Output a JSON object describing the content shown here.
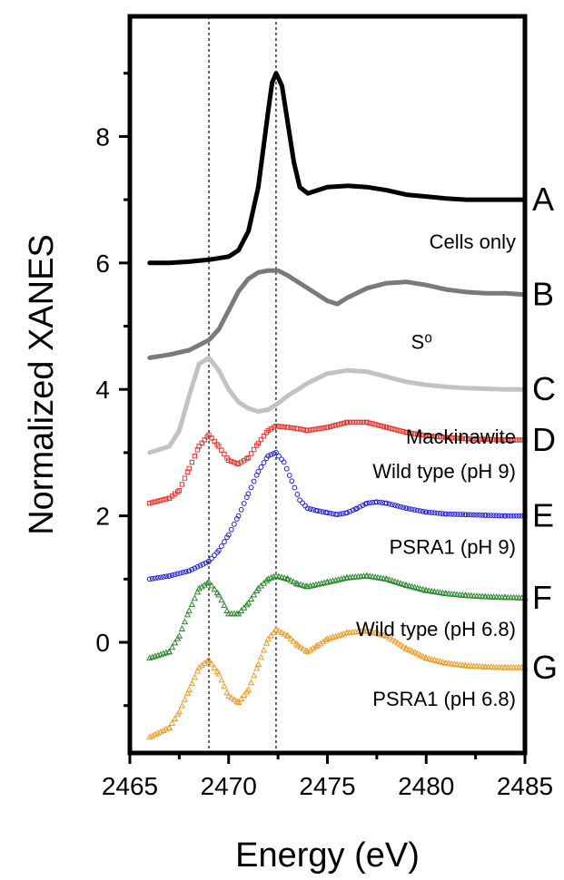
{
  "chart_data": {
    "type": "line",
    "title": "",
    "xlabel": "Energy (eV)",
    "ylabel": "Normalized XANES",
    "xlim": [
      2465,
      2485
    ],
    "ylim": [
      -1.75,
      9.9
    ],
    "x_ticks": [
      2465,
      2470,
      2475,
      2480,
      2485
    ],
    "y_ticks": [
      0,
      2,
      4,
      6,
      8
    ],
    "grid": false,
    "reference_lines_x": [
      2469.0,
      2472.4
    ],
    "series": [
      {
        "name": "Cells only",
        "letter": "A",
        "color": "#000000",
        "style": "line",
        "x": [
          2466,
          2467,
          2468,
          2469,
          2470,
          2470.5,
          2471,
          2471.5,
          2472,
          2472.2,
          2472.4,
          2472.7,
          2473,
          2473.3,
          2473.6,
          2474,
          2474.5,
          2475,
          2476,
          2477,
          2478,
          2479,
          2480,
          2481,
          2482,
          2483,
          2484,
          2485
        ],
        "y": [
          6.0,
          6.0,
          6.02,
          6.05,
          6.1,
          6.2,
          6.5,
          7.2,
          8.4,
          8.85,
          9.0,
          8.8,
          8.2,
          7.6,
          7.2,
          7.1,
          7.15,
          7.2,
          7.22,
          7.2,
          7.15,
          7.08,
          7.05,
          7.02,
          7.0,
          7.0,
          7.0,
          7.0
        ]
      },
      {
        "name": "S0",
        "letter": "B",
        "color": "#7a7a7a",
        "style": "line",
        "x": [
          2466,
          2467,
          2468,
          2469,
          2469.5,
          2470,
          2470.5,
          2471,
          2471.5,
          2472,
          2472.5,
          2473,
          2474,
          2475,
          2475.5,
          2476,
          2477,
          2478,
          2479,
          2480,
          2481,
          2482,
          2483,
          2484,
          2485
        ],
        "y": [
          4.5,
          4.55,
          4.62,
          4.78,
          4.95,
          5.25,
          5.55,
          5.75,
          5.85,
          5.88,
          5.88,
          5.8,
          5.6,
          5.4,
          5.35,
          5.45,
          5.6,
          5.68,
          5.7,
          5.65,
          5.58,
          5.54,
          5.52,
          5.52,
          5.5
        ]
      },
      {
        "name": "Mackinawite",
        "letter": "C",
        "color": "#c2c2c2",
        "style": "line",
        "x": [
          2466,
          2467,
          2467.5,
          2468,
          2468.5,
          2469,
          2469.5,
          2470,
          2470.5,
          2471,
          2471.5,
          2472,
          2472.5,
          2473,
          2474,
          2475,
          2476,
          2477,
          2478,
          2479,
          2480,
          2481,
          2482,
          2483,
          2484,
          2485
        ],
        "y": [
          3.0,
          3.1,
          3.35,
          3.9,
          4.4,
          4.5,
          4.3,
          4.0,
          3.8,
          3.7,
          3.65,
          3.68,
          3.78,
          3.9,
          4.1,
          4.25,
          4.3,
          4.28,
          4.2,
          4.12,
          4.07,
          4.04,
          4.02,
          4.01,
          4.0,
          4.0
        ]
      },
      {
        "name": "Wild type (pH 9)",
        "letter": "D",
        "color": "#e8352c",
        "style": "square",
        "x": [
          2466,
          2467,
          2467.5,
          2468,
          2468.5,
          2469,
          2469.5,
          2470,
          2470.5,
          2471,
          2471.5,
          2472,
          2472.4,
          2473,
          2473.5,
          2474,
          2475,
          2476,
          2477,
          2478,
          2479,
          2480,
          2481,
          2482,
          2483,
          2484,
          2485
        ],
        "y": [
          2.2,
          2.28,
          2.4,
          2.75,
          3.1,
          3.28,
          3.1,
          2.88,
          2.82,
          2.92,
          3.15,
          3.35,
          3.42,
          3.4,
          3.38,
          3.35,
          3.4,
          3.48,
          3.48,
          3.4,
          3.32,
          3.27,
          3.24,
          3.22,
          3.21,
          3.2,
          3.2
        ]
      },
      {
        "name": "PSRA1 (pH 9)",
        "letter": "E",
        "color": "#2222dd",
        "style": "circle",
        "x": [
          2466,
          2467,
          2468,
          2469,
          2469.5,
          2470,
          2470.5,
          2471,
          2471.5,
          2472,
          2472.4,
          2472.8,
          2473.2,
          2473.6,
          2474,
          2474.5,
          2475,
          2475.5,
          2476,
          2476.5,
          2477,
          2477.5,
          2478,
          2479,
          2480,
          2481,
          2482,
          2483,
          2484,
          2485
        ],
        "y": [
          1.0,
          1.05,
          1.13,
          1.28,
          1.45,
          1.7,
          2.0,
          2.35,
          2.7,
          2.95,
          3.0,
          2.85,
          2.55,
          2.25,
          2.12,
          2.08,
          2.05,
          2.02,
          2.05,
          2.12,
          2.2,
          2.22,
          2.2,
          2.12,
          2.06,
          2.03,
          2.02,
          2.01,
          2.0,
          2.0
        ]
      },
      {
        "name": "Wild type (pH 6.8)",
        "letter": "F",
        "color": "#2a8a2a",
        "style": "triangle",
        "x": [
          2466,
          2467,
          2467.5,
          2468,
          2468.5,
          2469,
          2469.5,
          2470,
          2470.5,
          2471,
          2471.5,
          2472,
          2472.4,
          2473,
          2473.5,
          2474,
          2475,
          2476,
          2477,
          2478,
          2479,
          2480,
          2481,
          2482,
          2483,
          2484,
          2485
        ],
        "y": [
          -0.25,
          -0.15,
          0.1,
          0.5,
          0.85,
          0.95,
          0.75,
          0.45,
          0.45,
          0.62,
          0.85,
          1.0,
          1.05,
          1.0,
          0.92,
          0.88,
          0.95,
          1.02,
          1.05,
          1.0,
          0.9,
          0.82,
          0.77,
          0.74,
          0.72,
          0.71,
          0.7
        ]
      },
      {
        "name": "PSRA1 (pH 6.8)",
        "letter": "G",
        "color": "#f39a23",
        "style": "triangle",
        "x": [
          2466,
          2467,
          2467.5,
          2468,
          2468.5,
          2469,
          2469.5,
          2470,
          2470.5,
          2471,
          2471.5,
          2472,
          2472.4,
          2473,
          2473.5,
          2474,
          2474.5,
          2475,
          2476,
          2477,
          2478,
          2479,
          2480,
          2481,
          2482,
          2483,
          2484,
          2485
        ],
        "y": [
          -1.5,
          -1.35,
          -1.1,
          -0.75,
          -0.4,
          -0.28,
          -0.5,
          -0.85,
          -0.95,
          -0.75,
          -0.35,
          0.05,
          0.2,
          0.1,
          -0.05,
          -0.15,
          -0.05,
          0.05,
          0.15,
          0.18,
          0.1,
          -0.1,
          -0.25,
          -0.33,
          -0.37,
          -0.39,
          -0.4,
          -0.4
        ]
      }
    ]
  },
  "annotations": [
    {
      "series": 0,
      "text": "Cells only"
    },
    {
      "series": 1,
      "text": "S⁰"
    },
    {
      "series": 2,
      "text": "Mackinawite"
    },
    {
      "series": 3,
      "text": "Wild type (pH 9)"
    },
    {
      "series": 4,
      "text": "PSRA1 (pH 9)"
    },
    {
      "series": 5,
      "text": "Wild type (pH 6.8)"
    },
    {
      "series": 6,
      "text": "PSRA1 (pH 6.8)"
    }
  ]
}
